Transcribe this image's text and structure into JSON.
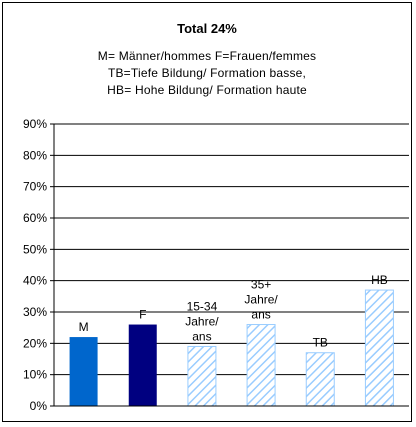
{
  "chart_data": {
    "type": "bar",
    "title": "Total 24%",
    "subtitle_lines": [
      "M= Männer/hommes F=Frauen/femmes",
      "TB=Tiefe Bildung/ Formation basse,",
      "HB= Hohe Bildung/ Formation haute"
    ],
    "categories": [
      "M",
      "F",
      "15-34 Jahre/ ans",
      "35+ Jahre/ ans",
      "TB",
      "HB"
    ],
    "values": [
      22,
      26,
      19,
      26,
      17,
      37
    ],
    "bar_labels": [
      [
        "M"
      ],
      [
        "F"
      ],
      [
        "15-34",
        "Jahre/",
        "ans"
      ],
      [
        "35+",
        "Jahre/",
        "ans"
      ],
      [
        "TB"
      ],
      [
        "HB"
      ]
    ],
    "ylim": [
      0,
      90
    ],
    "yticks": [
      "0%",
      "10%",
      "20%",
      "30%",
      "40%",
      "50%",
      "60%",
      "70%",
      "80%",
      "90%"
    ],
    "ytick_values": [
      0,
      10,
      20,
      30,
      40,
      50,
      60,
      70,
      80,
      90
    ],
    "grid": true,
    "xlabel": "",
    "ylabel": "",
    "bar_styles": [
      "solid",
      "solid",
      "hatched",
      "hatched",
      "hatched",
      "hatched"
    ],
    "colors": {
      "M": "#0066cc",
      "F": "#000080",
      "hatch": "#99ccff"
    }
  }
}
